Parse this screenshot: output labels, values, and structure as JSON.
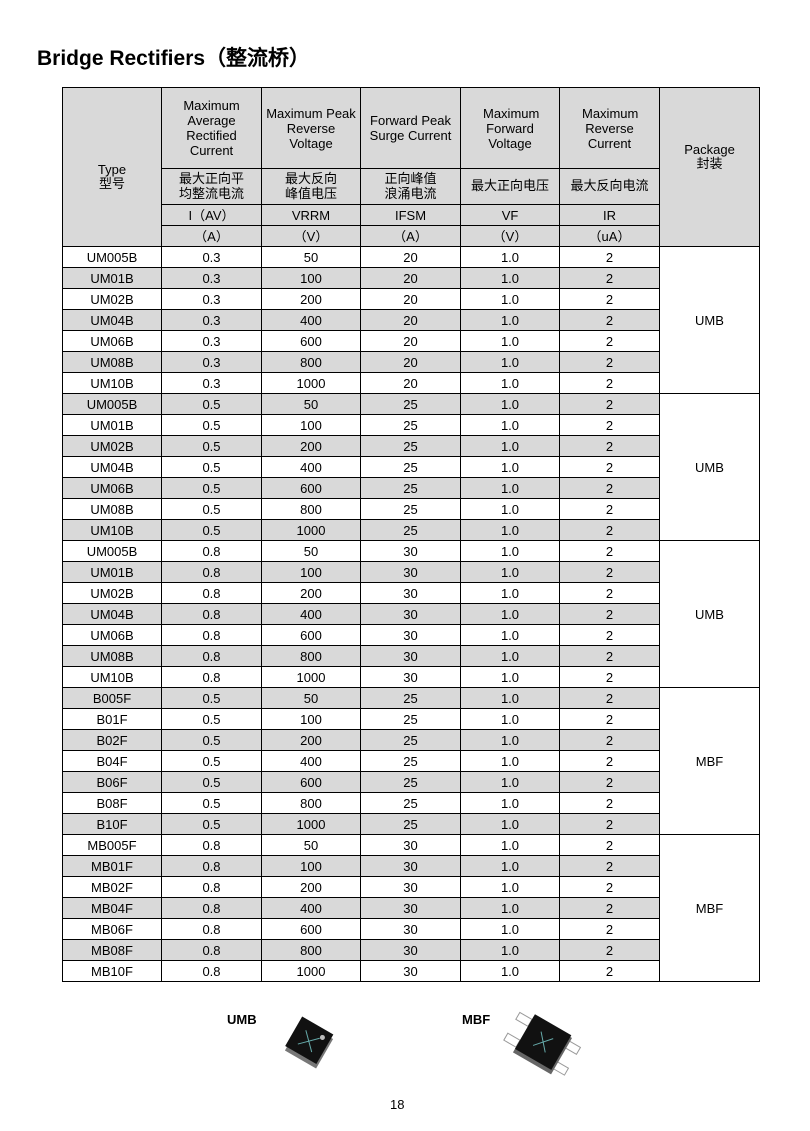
{
  "title": "Bridge Rectifiers（整流桥）",
  "header": {
    "type": {
      "en": "Type",
      "cn": "型号"
    },
    "package": {
      "en": "Package",
      "cn": "封装"
    },
    "columns": [
      {
        "en": "Maximum Average Rectified Current",
        "cn": "最大正向平均整流电流",
        "symbol": "I（AV）",
        "unit": "（A）"
      },
      {
        "en": "Maximum Peak Reverse Voltage",
        "cn": "最大反向峰值电压",
        "symbol": "VRRM",
        "unit": "（V）"
      },
      {
        "en": "Forward Peak Surge Current",
        "cn": "正向峰值浪涌电流",
        "symbol": "IFSM",
        "unit": "（A）"
      },
      {
        "en": "Maximum Forward Voltage",
        "cn": "最大正向电压",
        "symbol": "VF",
        "unit": "（V）"
      },
      {
        "en": "Maximum Reverse Current",
        "cn": "最大反向电流",
        "symbol": "IR",
        "unit": "（uA）"
      }
    ]
  },
  "groups": [
    {
      "package": "UMB",
      "rows": [
        [
          "UM005B",
          "0.3",
          "50",
          "20",
          "1.0",
          "2"
        ],
        [
          "UM01B",
          "0.3",
          "100",
          "20",
          "1.0",
          "2"
        ],
        [
          "UM02B",
          "0.3",
          "200",
          "20",
          "1.0",
          "2"
        ],
        [
          "UM04B",
          "0.3",
          "400",
          "20",
          "1.0",
          "2"
        ],
        [
          "UM06B",
          "0.3",
          "600",
          "20",
          "1.0",
          "2"
        ],
        [
          "UM08B",
          "0.3",
          "800",
          "20",
          "1.0",
          "2"
        ],
        [
          "UM10B",
          "0.3",
          "1000",
          "20",
          "1.0",
          "2"
        ]
      ]
    },
    {
      "package": "UMB",
      "rows": [
        [
          "UM005B",
          "0.5",
          "50",
          "25",
          "1.0",
          "2"
        ],
        [
          "UM01B",
          "0.5",
          "100",
          "25",
          "1.0",
          "2"
        ],
        [
          "UM02B",
          "0.5",
          "200",
          "25",
          "1.0",
          "2"
        ],
        [
          "UM04B",
          "0.5",
          "400",
          "25",
          "1.0",
          "2"
        ],
        [
          "UM06B",
          "0.5",
          "600",
          "25",
          "1.0",
          "2"
        ],
        [
          "UM08B",
          "0.5",
          "800",
          "25",
          "1.0",
          "2"
        ],
        [
          "UM10B",
          "0.5",
          "1000",
          "25",
          "1.0",
          "2"
        ]
      ]
    },
    {
      "package": "UMB",
      "rows": [
        [
          "UM005B",
          "0.8",
          "50",
          "30",
          "1.0",
          "2"
        ],
        [
          "UM01B",
          "0.8",
          "100",
          "30",
          "1.0",
          "2"
        ],
        [
          "UM02B",
          "0.8",
          "200",
          "30",
          "1.0",
          "2"
        ],
        [
          "UM04B",
          "0.8",
          "400",
          "30",
          "1.0",
          "2"
        ],
        [
          "UM06B",
          "0.8",
          "600",
          "30",
          "1.0",
          "2"
        ],
        [
          "UM08B",
          "0.8",
          "800",
          "30",
          "1.0",
          "2"
        ],
        [
          "UM10B",
          "0.8",
          "1000",
          "30",
          "1.0",
          "2"
        ]
      ]
    },
    {
      "package": "MBF",
      "rows": [
        [
          "B005F",
          "0.5",
          "50",
          "25",
          "1.0",
          "2"
        ],
        [
          "B01F",
          "0.5",
          "100",
          "25",
          "1.0",
          "2"
        ],
        [
          "B02F",
          "0.5",
          "200",
          "25",
          "1.0",
          "2"
        ],
        [
          "B04F",
          "0.5",
          "400",
          "25",
          "1.0",
          "2"
        ],
        [
          "B06F",
          "0.5",
          "600",
          "25",
          "1.0",
          "2"
        ],
        [
          "B08F",
          "0.5",
          "800",
          "25",
          "1.0",
          "2"
        ],
        [
          "B10F",
          "0.5",
          "1000",
          "25",
          "1.0",
          "2"
        ]
      ]
    },
    {
      "package": "MBF",
      "rows": [
        [
          "MB005F",
          "0.8",
          "50",
          "30",
          "1.0",
          "2"
        ],
        [
          "MB01F",
          "0.8",
          "100",
          "30",
          "1.0",
          "2"
        ],
        [
          "MB02F",
          "0.8",
          "200",
          "30",
          "1.0",
          "2"
        ],
        [
          "MB04F",
          "0.8",
          "400",
          "30",
          "1.0",
          "2"
        ],
        [
          "MB06F",
          "0.8",
          "600",
          "30",
          "1.0",
          "2"
        ],
        [
          "MB08F",
          "0.8",
          "800",
          "30",
          "1.0",
          "2"
        ],
        [
          "MB10F",
          "0.8",
          "1000",
          "30",
          "1.0",
          "2"
        ]
      ]
    }
  ],
  "images": {
    "umb_label": "UMB",
    "mbf_label": "MBF"
  },
  "page_number": "18",
  "colors": {
    "header_bg": "#d9d9d9",
    "stripe_bg": "#d9d9d9",
    "border": "#000000"
  }
}
